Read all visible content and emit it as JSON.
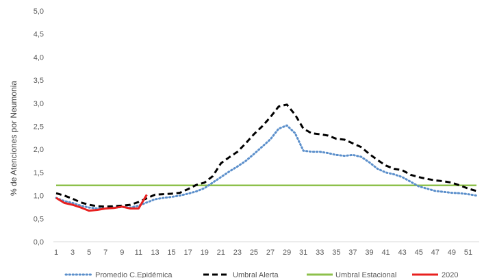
{
  "chart_data": {
    "type": "line",
    "title": "",
    "xlabel": "",
    "ylabel": "% de Atenciones por Neumonia",
    "ylim": [
      0,
      5
    ],
    "xlim": [
      1,
      52
    ],
    "y_ticks": [
      "0,0",
      "0,5",
      "1,0",
      "1,5",
      "2,0",
      "2,5",
      "3,0",
      "3,5",
      "4,0",
      "4,5",
      "5,0"
    ],
    "x_ticks": [
      "1",
      "3",
      "5",
      "7",
      "9",
      "11",
      "13",
      "15",
      "17",
      "19",
      "21",
      "23",
      "25",
      "27",
      "29",
      "31",
      "33",
      "35",
      "37",
      "39",
      "41",
      "43",
      "45",
      "47",
      "49",
      "51"
    ],
    "legend_position": "bottom",
    "grid": false,
    "series": [
      {
        "name": "Promedio C.Epidémica",
        "color": "#5B8FCB",
        "style": "dotted",
        "x": [
          1,
          2,
          3,
          4,
          5,
          6,
          7,
          8,
          9,
          10,
          11,
          12,
          13,
          14,
          15,
          16,
          17,
          18,
          19,
          20,
          21,
          22,
          23,
          24,
          25,
          26,
          27,
          28,
          29,
          30,
          31,
          32,
          33,
          34,
          35,
          36,
          37,
          38,
          39,
          40,
          41,
          42,
          43,
          44,
          45,
          46,
          47,
          48,
          49,
          50,
          51,
          52
        ],
        "values": [
          0.95,
          0.88,
          0.84,
          0.78,
          0.74,
          0.72,
          0.72,
          0.74,
          0.75,
          0.74,
          0.78,
          0.85,
          0.92,
          0.95,
          0.97,
          1.0,
          1.04,
          1.09,
          1.16,
          1.28,
          1.4,
          1.52,
          1.63,
          1.75,
          1.9,
          2.06,
          2.22,
          2.45,
          2.52,
          2.35,
          1.97,
          1.95,
          1.95,
          1.92,
          1.88,
          1.86,
          1.88,
          1.84,
          1.72,
          1.58,
          1.5,
          1.46,
          1.4,
          1.3,
          1.2,
          1.15,
          1.1,
          1.08,
          1.06,
          1.05,
          1.03,
          1.0
        ]
      },
      {
        "name": "Umbral Alerta",
        "color": "#000000",
        "style": "dashed",
        "x": [
          1,
          2,
          3,
          4,
          5,
          6,
          7,
          8,
          9,
          10,
          11,
          12,
          13,
          14,
          15,
          16,
          17,
          18,
          19,
          20,
          21,
          22,
          23,
          24,
          25,
          26,
          27,
          28,
          29,
          30,
          31,
          32,
          33,
          34,
          35,
          36,
          37,
          38,
          39,
          40,
          41,
          42,
          43,
          44,
          45,
          46,
          47,
          48,
          49,
          50,
          51,
          52
        ],
        "values": [
          1.05,
          1.0,
          0.93,
          0.85,
          0.8,
          0.77,
          0.76,
          0.77,
          0.78,
          0.8,
          0.86,
          0.94,
          1.02,
          1.03,
          1.04,
          1.06,
          1.14,
          1.23,
          1.28,
          1.42,
          1.7,
          1.83,
          1.95,
          2.13,
          2.33,
          2.5,
          2.7,
          2.93,
          2.97,
          2.75,
          2.45,
          2.35,
          2.33,
          2.3,
          2.23,
          2.21,
          2.13,
          2.05,
          1.9,
          1.77,
          1.65,
          1.58,
          1.55,
          1.45,
          1.4,
          1.36,
          1.33,
          1.31,
          1.28,
          1.22,
          1.15,
          1.1
        ]
      },
      {
        "name": "Umbral Estacional",
        "color": "#8DC04B",
        "style": "solid",
        "x": [
          1,
          52
        ],
        "values": [
          1.22,
          1.22
        ]
      },
      {
        "name": "2020",
        "color": "#E8201F",
        "style": "solid",
        "x": [
          1,
          2,
          3,
          4,
          5,
          6,
          7,
          8,
          9,
          10,
          11,
          12
        ],
        "values": [
          0.95,
          0.84,
          0.8,
          0.74,
          0.67,
          0.69,
          0.72,
          0.73,
          0.76,
          0.72,
          0.72,
          1.02
        ]
      }
    ]
  }
}
